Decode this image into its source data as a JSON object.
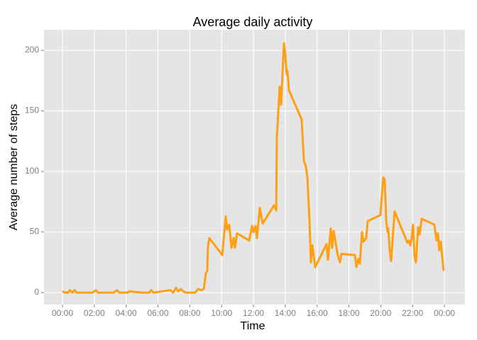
{
  "chart_data": {
    "type": "line",
    "title": "Average daily activity",
    "x_label": "Time",
    "y_label": "Average number of steps",
    "xlim": [
      -1.16,
      25.29
    ],
    "ylim": [
      -9.9,
      217
    ],
    "xticks": [
      {
        "value": 0,
        "label": "00:00"
      },
      {
        "value": 2,
        "label": "02:00"
      },
      {
        "value": 4,
        "label": "04:00"
      },
      {
        "value": 6,
        "label": "06:00"
      },
      {
        "value": 8,
        "label": "08:00"
      },
      {
        "value": 10,
        "label": "10:00"
      },
      {
        "value": 12,
        "label": "12:00"
      },
      {
        "value": 14,
        "label": "14:00"
      },
      {
        "value": 16,
        "label": "16:00"
      },
      {
        "value": 18,
        "label": "18:00"
      },
      {
        "value": 20,
        "label": "20:00"
      },
      {
        "value": 22,
        "label": "22:00"
      },
      {
        "value": 24,
        "label": "00:00"
      }
    ],
    "yticks": [
      0,
      50,
      100,
      150,
      200
    ],
    "grid": true,
    "series": [
      {
        "color": "#ff9f14",
        "x": [
          0,
          0.18,
          0.36,
          0.45,
          0.62,
          0.76,
          0.89,
          1.43,
          1.87,
          2.1,
          2.23,
          3.21,
          3.43,
          3.57,
          4.1,
          4.19,
          5.0,
          5.44,
          5.58,
          5.71,
          6.78,
          6.96,
          7.14,
          7.27,
          7.45,
          7.58,
          7.76,
          8.34,
          8.52,
          8.74,
          8.88,
          9.01,
          9.1,
          9.14,
          9.23,
          10.04,
          10.26,
          10.35,
          10.48,
          10.62,
          10.75,
          10.84,
          10.97,
          11.73,
          11.91,
          12.0,
          12.13,
          12.22,
          12.4,
          12.58,
          13.29,
          13.43,
          13.47,
          13.65,
          13.74,
          13.83,
          13.92,
          14.01,
          14.09,
          14.14,
          14.23,
          15.03,
          15.17,
          15.3,
          15.39,
          15.52,
          15.61,
          15.7,
          15.88,
          16.59,
          16.68,
          16.86,
          16.95,
          17.04,
          17.31,
          17.44,
          17.53,
          18.38,
          18.47,
          18.6,
          18.69,
          18.82,
          18.91,
          19.09,
          19.18,
          19.98,
          20.07,
          20.16,
          20.25,
          20.34,
          20.43,
          20.47,
          20.56,
          20.65,
          20.87,
          21.68,
          21.77,
          21.85,
          21.94,
          22.03,
          22.12,
          22.21,
          22.35,
          22.44,
          22.57,
          23.37,
          23.51,
          23.59,
          23.68,
          23.77,
          23.86,
          23.95
        ],
        "values": [
          1,
          0,
          0,
          2,
          0,
          2,
          0,
          0,
          0,
          2,
          0,
          0,
          2,
          0,
          0,
          1,
          0,
          0,
          2,
          0,
          2,
          0,
          4,
          1,
          3,
          1,
          0,
          0,
          3,
          2,
          3,
          16,
          18,
          38,
          45,
          31,
          63,
          52,
          56,
          37,
          45,
          37,
          49,
          43,
          55,
          50,
          55,
          45,
          70,
          57,
          72,
          68,
          128,
          170,
          155,
          182,
          206,
          195,
          180,
          183,
          167,
          143,
          109,
          104,
          95,
          60,
          25,
          39,
          21,
          40,
          27,
          53,
          37,
          51,
          30,
          25,
          32,
          31,
          21,
          28,
          24,
          50,
          42,
          45,
          59,
          64,
          80,
          95,
          93,
          60,
          50,
          53,
          35,
          26,
          67,
          41,
          43,
          39,
          45,
          56,
          30,
          25,
          54,
          48,
          61,
          56,
          43,
          49,
          35,
          42,
          30,
          18
        ]
      }
    ]
  }
}
